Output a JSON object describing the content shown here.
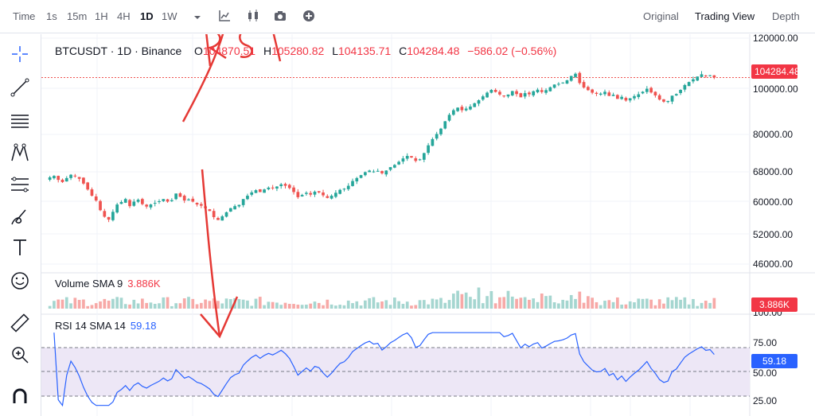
{
  "toolbar": {
    "time_label": "Time",
    "timeframes": [
      "1s",
      "15m",
      "1H",
      "4H",
      "1D",
      "1W"
    ],
    "active_timeframe": "1D",
    "views": [
      "Original",
      "Trading View",
      "Depth"
    ],
    "active_view": "Trading View",
    "icons": [
      "chevron-down-icon",
      "indicators-icon",
      "candles-icon",
      "camera-icon",
      "add-icon"
    ]
  },
  "left_tools": [
    "crosshair-icon",
    "trendline-icon",
    "horizontal-lines-icon",
    "pattern-icon",
    "fib-icon",
    "brush-icon",
    "text-icon",
    "emoji-icon",
    "ruler-icon",
    "zoom-icon",
    "magnet-icon"
  ],
  "legend": {
    "symbol": "BTCUSDT · 1D · Binance",
    "o_label": "O",
    "o_val": "104870.51",
    "h_label": "H",
    "h_val": "105280.82",
    "l_label": "L",
    "l_val": "104135.71",
    "c_label": "C",
    "c_val": "104284.48",
    "change": "−586.02 (−0.56%)"
  },
  "price_axis": {
    "labels": [
      "120000.00",
      "100000.00",
      "80000.00",
      "68000.00",
      "60000.00",
      "52000.00",
      "46000.00"
    ],
    "last_price": "104284.48"
  },
  "volume": {
    "label": "Volume SMA 9",
    "value": "3.886K",
    "axis_label": "100.00"
  },
  "rsi": {
    "label": "RSI 14 SMA 14",
    "value": "59.18",
    "axis_labels": [
      "75.00",
      "50.00",
      "25.00"
    ]
  },
  "annotation": {
    "handwritten_text": "RSI"
  },
  "colors": {
    "up": "#26a69a",
    "down": "#ef5350",
    "rsi_line": "#2962ff",
    "rsi_band": "#ede7f6",
    "annotation": "#e53935",
    "price_tag": "#f23645",
    "rsi_tag": "#2962ff"
  },
  "chart_data": {
    "type": "candlestick",
    "symbol": "BTCUSDT",
    "interval": "1D",
    "price_ylim": [
      46000,
      120000
    ],
    "close_series": [
      66500,
      66900,
      65800,
      65200,
      66300,
      67200,
      66800,
      66100,
      64800,
      63200,
      61500,
      60200,
      57800,
      56200,
      55500,
      57400,
      59200,
      59800,
      60600,
      58800,
      59900,
      60400,
      59300,
      58700,
      59200,
      59600,
      60000,
      60600,
      59900,
      60300,
      62100,
      61200,
      60200,
      60500,
      59900,
      59200,
      58900,
      58300,
      57600,
      56100,
      55400,
      56300,
      57300,
      58300,
      58800,
      59100,
      60600,
      61500,
      62400,
      63000,
      62500,
      63200,
      63700,
      63500,
      64000,
      64600,
      64200,
      63600,
      62500,
      61100,
      61700,
      62300,
      61800,
      62600,
      62400,
      61600,
      60900,
      61500,
      62300,
      63100,
      63400,
      64200,
      65500,
      66300,
      67100,
      67900,
      68400,
      68100,
      68300,
      67600,
      68400,
      69500,
      70200,
      71200,
      72300,
      73100,
      72600,
      71500,
      72000,
      74000,
      76500,
      78500,
      80200,
      82500,
      85700,
      88500,
      90500,
      91600,
      90500,
      91200,
      92100,
      93500,
      94800,
      96500,
      98100,
      99300,
      98400,
      97300,
      96500,
      97300,
      98800,
      97500,
      96100,
      97900,
      97400,
      98700,
      99400,
      98400,
      99200,
      100400,
      101500,
      101800,
      102300,
      103200,
      104900,
      105800,
      102100,
      100300,
      99200,
      98100,
      97600,
      97700,
      98500,
      96700,
      97200,
      95400,
      96300,
      94700,
      95700,
      96600,
      97400,
      98500,
      99800,
      98200,
      96900,
      95100,
      94200,
      94500,
      96800,
      97500,
      99300,
      101300,
      102500,
      103600,
      104700,
      105600,
      104900,
      105200,
      104284
    ]
  }
}
